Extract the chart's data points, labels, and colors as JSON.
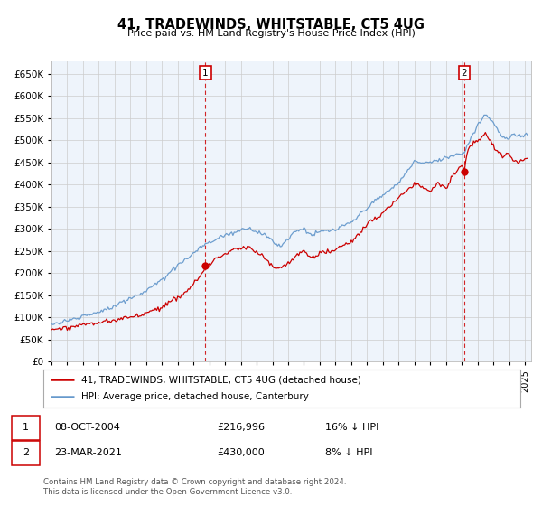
{
  "title": "41, TRADEWINDS, WHITSTABLE, CT5 4UG",
  "subtitle": "Price paid vs. HM Land Registry's House Price Index (HPI)",
  "legend_label_red": "41, TRADEWINDS, WHITSTABLE, CT5 4UG (detached house)",
  "legend_label_blue": "HPI: Average price, detached house, Canterbury",
  "annotation1_date": "08-OCT-2004",
  "annotation1_price_str": "£216,996",
  "annotation1_pct": "16% ↓ HPI",
  "annotation2_date": "23-MAR-2021",
  "annotation2_price_str": "£430,000",
  "annotation2_pct": "8% ↓ HPI",
  "footer": "Contains HM Land Registry data © Crown copyright and database right 2024.\nThis data is licensed under the Open Government Licence v3.0.",
  "red_color": "#cc0000",
  "blue_color": "#6699cc",
  "blue_fill_color": "#ddeeff",
  "vline_color": "#cc0000",
  "grid_color": "#cccccc",
  "background_color": "#ffffff",
  "plot_bg_color": "#eef4fb",
  "ylim_min": 0,
  "ylim_max": 680000,
  "ytick_step": 50000,
  "t1": 2004.75,
  "t2": 2021.166,
  "price1": 216996,
  "price2": 430000
}
